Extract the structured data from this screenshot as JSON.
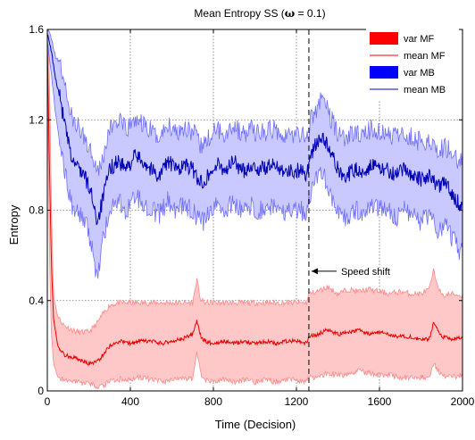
{
  "chart_data": {
    "type": "line",
    "title_prefix": "Mean Entropy SS (",
    "title_omega": "ω",
    "title_suffix": " = 0.1)",
    "xlabel": "Time (Decision)",
    "ylabel": "Entropy",
    "xlim": [
      0,
      2000
    ],
    "ylim": [
      0,
      1.6
    ],
    "xticks": [
      0,
      400,
      800,
      1200,
      1600,
      2000
    ],
    "yticks": [
      0,
      0.4,
      0.8,
      1.2,
      1.6
    ],
    "xtick_labels": [
      "0",
      "400",
      "800",
      "1200",
      "1600",
      "2000"
    ],
    "ytick_labels": [
      "0",
      "0.4",
      "0.8",
      "1.2",
      "1.6"
    ],
    "grid": true,
    "legend_position": "top-right",
    "legend": [
      {
        "label": "var MF",
        "style": "patch",
        "color": "#ff0000"
      },
      {
        "label": "mean MF",
        "style": "line",
        "color": "#ff0000"
      },
      {
        "label": "var MB",
        "style": "patch",
        "color": "#0000ff"
      },
      {
        "label": "mean MB",
        "style": "line",
        "color": "#0000cc"
      }
    ],
    "colors": {
      "mf_fill": "#ffc8c8",
      "mf_edge": "#ff8a8a",
      "mf_mean": "#ee0000",
      "mb_fill": "#c9c9ff",
      "mb_edge": "#6f6fff",
      "mb_mean": "#0000b4"
    },
    "annotation": {
      "text": "Speed shift",
      "x": 1260,
      "y": 0.53,
      "vline_x": 1260
    },
    "series": [
      {
        "name": "mean MF",
        "x": [
          0,
          10,
          20,
          30,
          50,
          80,
          120,
          150,
          200,
          240,
          260,
          300,
          350,
          400,
          450,
          500,
          550,
          600,
          650,
          700,
          720,
          740,
          760,
          800,
          850,
          900,
          950,
          1000,
          1050,
          1100,
          1150,
          1200,
          1250,
          1260,
          1300,
          1350,
          1400,
          1450,
          1500,
          1550,
          1600,
          1650,
          1700,
          1750,
          1800,
          1840,
          1860,
          1900,
          1950,
          2000
        ],
        "y": [
          1.55,
          1.0,
          0.55,
          0.32,
          0.2,
          0.16,
          0.15,
          0.14,
          0.12,
          0.13,
          0.15,
          0.2,
          0.22,
          0.21,
          0.22,
          0.22,
          0.21,
          0.22,
          0.23,
          0.25,
          0.31,
          0.24,
          0.22,
          0.21,
          0.22,
          0.21,
          0.22,
          0.21,
          0.22,
          0.21,
          0.22,
          0.22,
          0.21,
          0.24,
          0.25,
          0.27,
          0.25,
          0.26,
          0.27,
          0.25,
          0.26,
          0.25,
          0.24,
          0.24,
          0.23,
          0.23,
          0.3,
          0.24,
          0.23,
          0.24
        ]
      },
      {
        "name": "var MF",
        "x": [
          0,
          10,
          20,
          30,
          50,
          80,
          120,
          150,
          200,
          240,
          260,
          300,
          350,
          400,
          450,
          500,
          550,
          600,
          650,
          700,
          720,
          740,
          760,
          800,
          850,
          900,
          950,
          1000,
          1050,
          1100,
          1150,
          1200,
          1250,
          1260,
          1300,
          1350,
          1400,
          1450,
          1500,
          1550,
          1600,
          1650,
          1700,
          1750,
          1800,
          1840,
          1860,
          1900,
          1950,
          2000
        ],
        "upper": [
          1.6,
          1.4,
          0.8,
          0.42,
          0.33,
          0.29,
          0.27,
          0.26,
          0.26,
          0.3,
          0.33,
          0.38,
          0.39,
          0.39,
          0.39,
          0.39,
          0.39,
          0.39,
          0.39,
          0.39,
          0.49,
          0.4,
          0.39,
          0.39,
          0.39,
          0.39,
          0.39,
          0.39,
          0.39,
          0.39,
          0.39,
          0.39,
          0.39,
          0.43,
          0.44,
          0.46,
          0.43,
          0.45,
          0.44,
          0.45,
          0.44,
          0.43,
          0.44,
          0.43,
          0.43,
          0.45,
          0.53,
          0.42,
          0.43,
          0.42
        ],
        "lower": [
          1.5,
          0.6,
          0.25,
          0.12,
          0.06,
          0.05,
          0.04,
          0.04,
          0.03,
          0.02,
          0.02,
          0.04,
          0.05,
          0.05,
          0.06,
          0.05,
          0.04,
          0.05,
          0.06,
          0.05,
          0.18,
          0.07,
          0.05,
          0.04,
          0.05,
          0.04,
          0.05,
          0.04,
          0.05,
          0.04,
          0.05,
          0.05,
          0.04,
          0.06,
          0.06,
          0.08,
          0.07,
          0.07,
          0.09,
          0.08,
          0.07,
          0.07,
          0.06,
          0.06,
          0.06,
          0.06,
          0.12,
          0.07,
          0.06,
          0.07
        ]
      },
      {
        "name": "mean MB",
        "x": [
          0,
          20,
          40,
          60,
          80,
          100,
          120,
          140,
          160,
          180,
          200,
          220,
          240,
          260,
          280,
          300,
          340,
          380,
          420,
          460,
          500,
          540,
          580,
          620,
          660,
          700,
          740,
          780,
          820,
          860,
          900,
          940,
          980,
          1020,
          1060,
          1100,
          1140,
          1180,
          1220,
          1250,
          1270,
          1300,
          1330,
          1360,
          1400,
          1440,
          1480,
          1520,
          1560,
          1600,
          1640,
          1680,
          1720,
          1760,
          1800,
          1840,
          1880,
          1920,
          1960,
          1990,
          2000
        ],
        "y": [
          1.58,
          1.5,
          1.38,
          1.3,
          1.2,
          1.1,
          1.02,
          1.0,
          0.98,
          0.95,
          0.9,
          0.85,
          0.75,
          0.82,
          0.9,
          0.98,
          1.02,
          0.98,
          1.04,
          1.02,
          0.98,
          0.95,
          1.02,
          0.98,
          1.0,
          0.98,
          0.92,
          0.96,
          1.0,
          0.98,
          1.02,
          0.97,
          1.0,
          0.98,
          0.99,
          1.0,
          0.98,
          0.97,
          0.98,
          0.96,
          1.05,
          1.1,
          1.12,
          1.06,
          0.98,
          0.95,
          0.98,
          0.97,
          1.0,
          0.98,
          0.98,
          0.95,
          0.98,
          0.96,
          0.93,
          0.96,
          0.9,
          0.92,
          0.86,
          0.82,
          0.86
        ]
      },
      {
        "name": "var MB",
        "x": [
          0,
          20,
          40,
          60,
          80,
          100,
          120,
          140,
          160,
          180,
          200,
          220,
          240,
          260,
          280,
          300,
          340,
          380,
          420,
          460,
          500,
          540,
          580,
          620,
          660,
          700,
          740,
          780,
          820,
          860,
          900,
          940,
          980,
          1020,
          1060,
          1100,
          1140,
          1180,
          1220,
          1250,
          1270,
          1300,
          1330,
          1360,
          1400,
          1440,
          1480,
          1520,
          1560,
          1600,
          1640,
          1680,
          1720,
          1760,
          1800,
          1840,
          1880,
          1920,
          1960,
          1990,
          2000
        ],
        "upper": [
          1.6,
          1.56,
          1.48,
          1.45,
          1.38,
          1.28,
          1.2,
          1.18,
          1.15,
          1.12,
          1.08,
          1.05,
          0.98,
          1.0,
          1.08,
          1.16,
          1.2,
          1.15,
          1.2,
          1.18,
          1.15,
          1.12,
          1.18,
          1.15,
          1.17,
          1.15,
          1.08,
          1.12,
          1.16,
          1.14,
          1.18,
          1.13,
          1.16,
          1.14,
          1.15,
          1.16,
          1.14,
          1.13,
          1.14,
          1.12,
          1.2,
          1.26,
          1.3,
          1.22,
          1.14,
          1.12,
          1.14,
          1.13,
          1.16,
          1.14,
          1.14,
          1.12,
          1.14,
          1.12,
          1.1,
          1.12,
          1.06,
          1.08,
          1.04,
          1.02,
          1.04
        ],
        "lower": [
          1.55,
          1.4,
          1.22,
          1.1,
          0.98,
          0.9,
          0.82,
          0.8,
          0.78,
          0.75,
          0.7,
          0.62,
          0.5,
          0.62,
          0.72,
          0.8,
          0.84,
          0.8,
          0.86,
          0.84,
          0.8,
          0.78,
          0.84,
          0.8,
          0.82,
          0.8,
          0.74,
          0.78,
          0.82,
          0.8,
          0.84,
          0.79,
          0.82,
          0.8,
          0.81,
          0.82,
          0.8,
          0.79,
          0.8,
          0.78,
          0.88,
          0.94,
          0.96,
          0.88,
          0.8,
          0.77,
          0.8,
          0.79,
          0.82,
          0.8,
          0.8,
          0.77,
          0.8,
          0.78,
          0.75,
          0.78,
          0.72,
          0.74,
          0.66,
          0.6,
          0.66
        ]
      }
    ]
  }
}
